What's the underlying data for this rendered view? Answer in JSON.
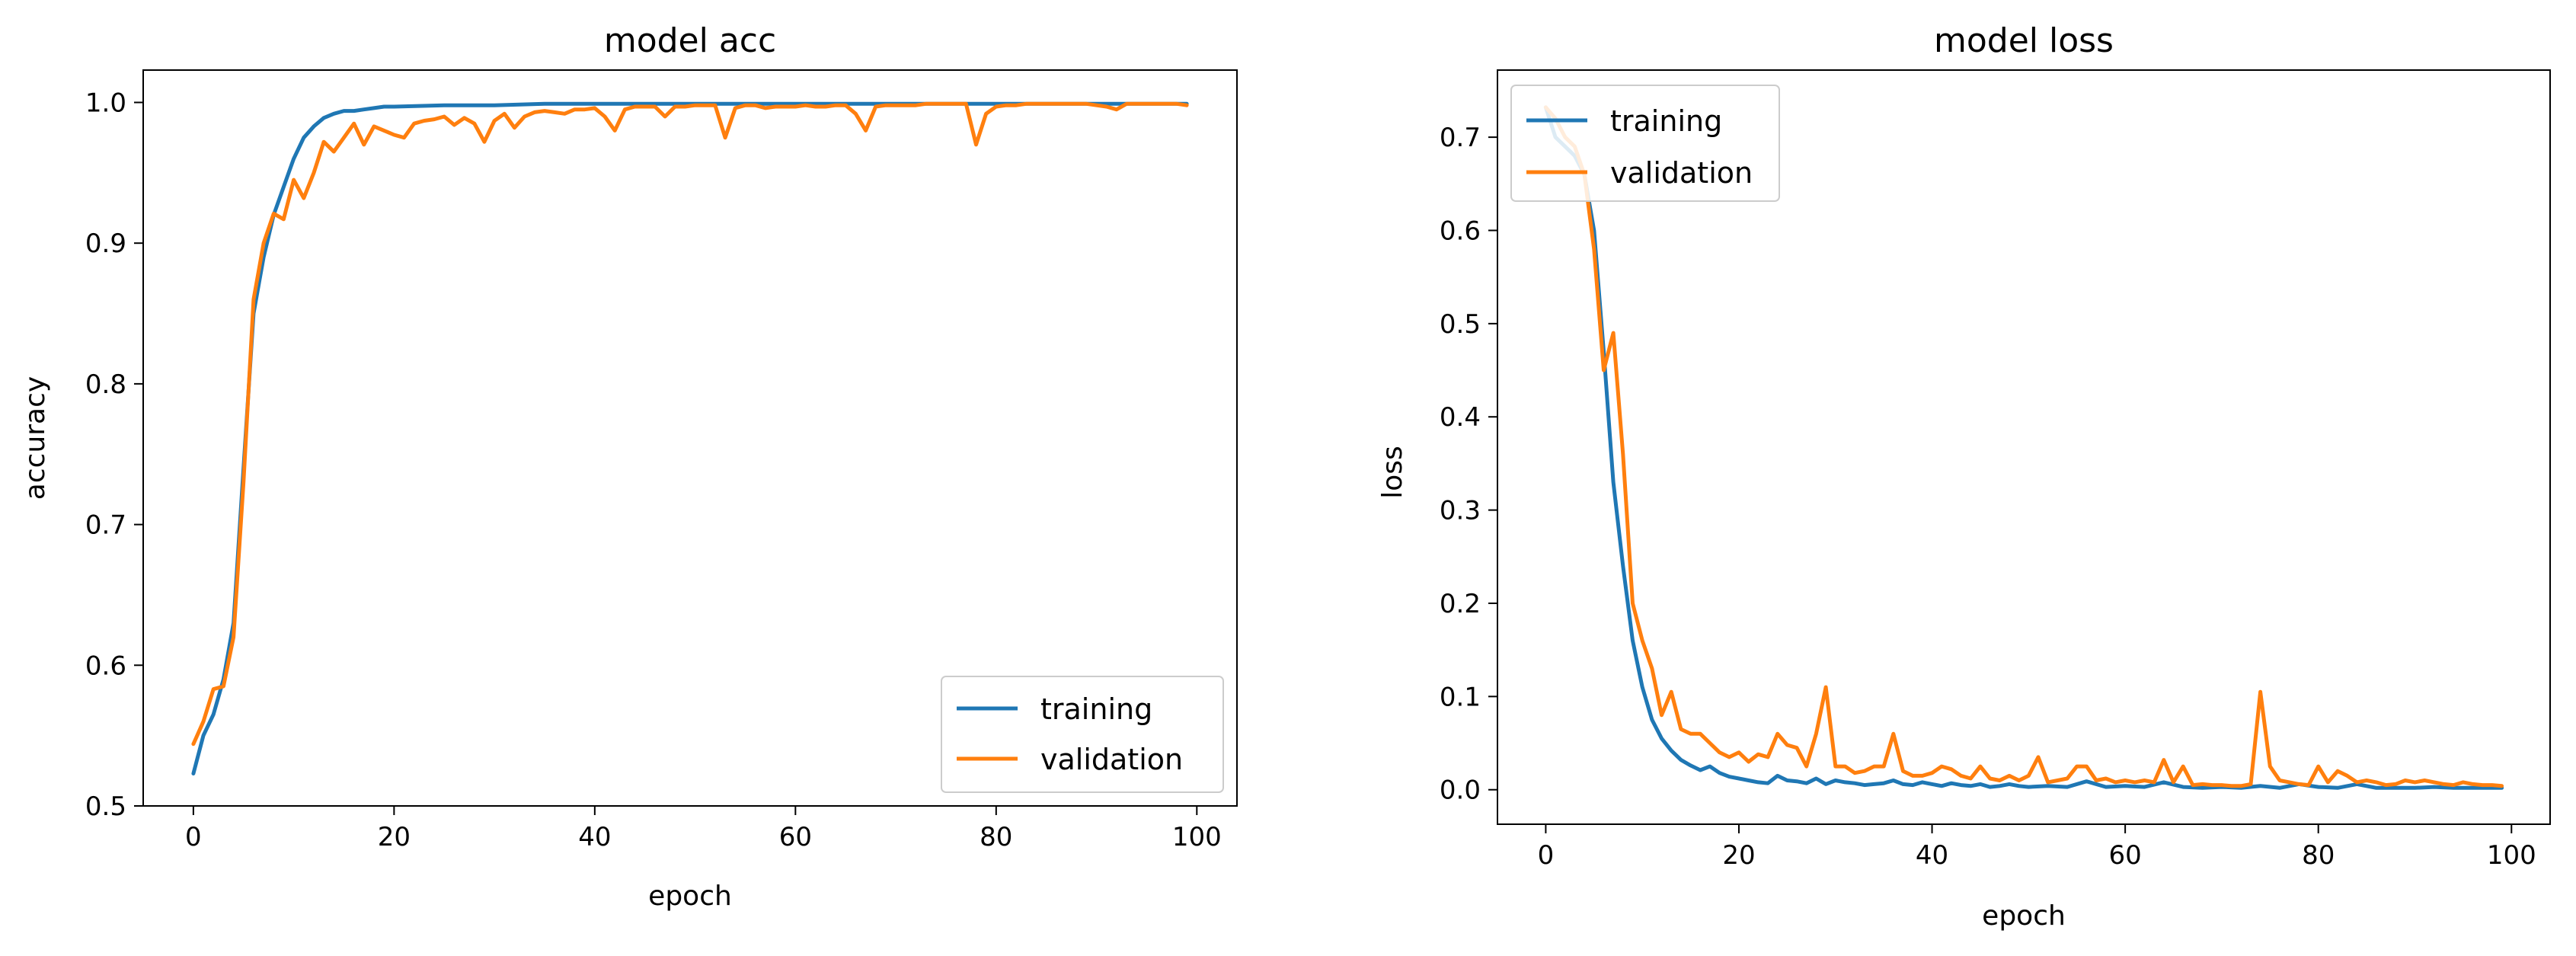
{
  "chart_data": [
    {
      "id": "acc",
      "type": "line",
      "title": "model acc",
      "xlabel": "epoch",
      "ylabel": "accuracy",
      "xlim": [
        -5,
        104
      ],
      "ylim": [
        0.5,
        1.023
      ],
      "xticks": [
        0,
        20,
        40,
        60,
        80,
        100
      ],
      "yticks": [
        0.5,
        0.6,
        0.7,
        0.8,
        0.9,
        1.0
      ],
      "ytick_labels": [
        "0.5",
        "0.6",
        "0.7",
        "0.8",
        "0.9",
        "1.0"
      ],
      "legend_loc": "lower-right",
      "grid": false,
      "series": [
        {
          "name": "training",
          "color": "#1f77b4",
          "x": [
            0,
            1,
            2,
            3,
            4,
            5,
            6,
            7,
            8,
            9,
            10,
            11,
            12,
            13,
            14,
            15,
            16,
            17,
            18,
            19,
            20,
            25,
            30,
            35,
            40,
            45,
            50,
            55,
            60,
            65,
            70,
            75,
            80,
            85,
            90,
            95,
            99
          ],
          "values": [
            0.523,
            0.55,
            0.565,
            0.59,
            0.63,
            0.74,
            0.85,
            0.89,
            0.92,
            0.94,
            0.96,
            0.975,
            0.983,
            0.989,
            0.992,
            0.994,
            0.994,
            0.995,
            0.996,
            0.997,
            0.997,
            0.998,
            0.998,
            0.999,
            0.999,
            0.999,
            0.999,
            0.999,
            0.999,
            0.999,
            0.999,
            0.999,
            0.999,
            0.999,
            0.999,
            0.999,
            0.999
          ]
        },
        {
          "name": "validation",
          "color": "#ff7f0e",
          "x": [
            0,
            1,
            2,
            3,
            4,
            5,
            6,
            7,
            8,
            9,
            10,
            11,
            12,
            13,
            14,
            15,
            16,
            17,
            18,
            19,
            20,
            21,
            22,
            23,
            24,
            25,
            26,
            27,
            28,
            29,
            30,
            31,
            32,
            33,
            34,
            35,
            36,
            37,
            38,
            39,
            40,
            41,
            42,
            43,
            44,
            45,
            46,
            47,
            48,
            49,
            50,
            51,
            52,
            53,
            54,
            55,
            56,
            57,
            58,
            59,
            60,
            61,
            62,
            63,
            64,
            65,
            66,
            67,
            68,
            69,
            70,
            71,
            72,
            73,
            74,
            75,
            76,
            77,
            78,
            79,
            80,
            81,
            82,
            83,
            84,
            85,
            86,
            87,
            88,
            89,
            90,
            91,
            92,
            93,
            94,
            95,
            96,
            97,
            98,
            99
          ],
          "values": [
            0.544,
            0.56,
            0.583,
            0.585,
            0.62,
            0.73,
            0.86,
            0.9,
            0.921,
            0.917,
            0.945,
            0.932,
            0.95,
            0.972,
            0.965,
            0.975,
            0.985,
            0.97,
            0.983,
            0.98,
            0.977,
            0.975,
            0.985,
            0.987,
            0.988,
            0.99,
            0.984,
            0.989,
            0.985,
            0.972,
            0.987,
            0.992,
            0.982,
            0.99,
            0.993,
            0.994,
            0.993,
            0.992,
            0.995,
            0.995,
            0.996,
            0.99,
            0.98,
            0.995,
            0.997,
            0.997,
            0.997,
            0.99,
            0.997,
            0.997,
            0.998,
            0.998,
            0.998,
            0.975,
            0.996,
            0.998,
            0.998,
            0.996,
            0.997,
            0.997,
            0.997,
            0.998,
            0.997,
            0.997,
            0.998,
            0.998,
            0.992,
            0.98,
            0.997,
            0.998,
            0.998,
            0.998,
            0.998,
            0.999,
            0.999,
            0.999,
            0.999,
            0.999,
            0.97,
            0.992,
            0.997,
            0.998,
            0.998,
            0.999,
            0.999,
            0.999,
            0.999,
            0.999,
            0.999,
            0.999,
            0.998,
            0.997,
            0.995,
            0.999,
            0.999,
            0.999,
            0.999,
            0.999,
            0.999,
            0.998
          ]
        }
      ]
    },
    {
      "id": "loss",
      "type": "line",
      "title": "model loss",
      "xlabel": "epoch",
      "ylabel": "loss",
      "xlim": [
        -5,
        104
      ],
      "ylim": [
        -0.037,
        0.772
      ],
      "xticks": [
        0,
        20,
        40,
        60,
        80,
        100
      ],
      "yticks": [
        0.0,
        0.1,
        0.2,
        0.3,
        0.4,
        0.5,
        0.6,
        0.7
      ],
      "ytick_labels": [
        "0.0",
        "0.1",
        "0.2",
        "0.3",
        "0.4",
        "0.5",
        "0.6",
        "0.7"
      ],
      "legend_loc": "upper-left",
      "grid": false,
      "series": [
        {
          "name": "training",
          "color": "#1f77b4",
          "x": [
            0,
            1,
            2,
            3,
            4,
            5,
            6,
            7,
            8,
            9,
            10,
            11,
            12,
            13,
            14,
            15,
            16,
            17,
            18,
            19,
            20,
            21,
            22,
            23,
            24,
            25,
            26,
            27,
            28,
            29,
            30,
            31,
            32,
            33,
            34,
            35,
            36,
            37,
            38,
            39,
            40,
            41,
            42,
            43,
            44,
            45,
            46,
            47,
            48,
            49,
            50,
            52,
            54,
            56,
            58,
            60,
            62,
            64,
            66,
            68,
            70,
            72,
            74,
            76,
            78,
            80,
            82,
            84,
            86,
            88,
            90,
            92,
            94,
            96,
            99
          ],
          "values": [
            0.732,
            0.7,
            0.69,
            0.68,
            0.66,
            0.6,
            0.47,
            0.33,
            0.24,
            0.16,
            0.11,
            0.075,
            0.055,
            0.042,
            0.032,
            0.026,
            0.021,
            0.025,
            0.018,
            0.014,
            0.012,
            0.01,
            0.008,
            0.007,
            0.015,
            0.01,
            0.009,
            0.007,
            0.012,
            0.006,
            0.01,
            0.008,
            0.007,
            0.005,
            0.006,
            0.007,
            0.01,
            0.006,
            0.005,
            0.008,
            0.006,
            0.004,
            0.007,
            0.005,
            0.004,
            0.006,
            0.003,
            0.004,
            0.006,
            0.004,
            0.003,
            0.004,
            0.003,
            0.009,
            0.003,
            0.004,
            0.003,
            0.008,
            0.003,
            0.002,
            0.003,
            0.002,
            0.004,
            0.002,
            0.006,
            0.003,
            0.002,
            0.006,
            0.002,
            0.002,
            0.002,
            0.003,
            0.002,
            0.002,
            0.002
          ]
        },
        {
          "name": "validation",
          "color": "#ff7f0e",
          "x": [
            0,
            1,
            2,
            3,
            4,
            5,
            6,
            7,
            8,
            9,
            10,
            11,
            12,
            13,
            14,
            15,
            16,
            17,
            18,
            19,
            20,
            21,
            22,
            23,
            24,
            25,
            26,
            27,
            28,
            29,
            30,
            31,
            32,
            33,
            34,
            35,
            36,
            37,
            38,
            39,
            40,
            41,
            42,
            43,
            44,
            45,
            46,
            47,
            48,
            49,
            50,
            51,
            52,
            53,
            54,
            55,
            56,
            57,
            58,
            59,
            60,
            61,
            62,
            63,
            64,
            65,
            66,
            67,
            68,
            69,
            70,
            71,
            72,
            73,
            74,
            75,
            76,
            77,
            78,
            79,
            80,
            81,
            82,
            83,
            84,
            85,
            86,
            87,
            88,
            89,
            90,
            91,
            92,
            93,
            94,
            95,
            96,
            97,
            98,
            99
          ],
          "values": [
            0.732,
            0.72,
            0.7,
            0.69,
            0.66,
            0.58,
            0.45,
            0.49,
            0.36,
            0.2,
            0.16,
            0.13,
            0.08,
            0.105,
            0.065,
            0.06,
            0.06,
            0.05,
            0.04,
            0.035,
            0.04,
            0.03,
            0.038,
            0.035,
            0.06,
            0.048,
            0.045,
            0.025,
            0.06,
            0.11,
            0.025,
            0.025,
            0.018,
            0.02,
            0.025,
            0.025,
            0.06,
            0.02,
            0.015,
            0.015,
            0.018,
            0.025,
            0.022,
            0.015,
            0.012,
            0.025,
            0.012,
            0.01,
            0.015,
            0.01,
            0.015,
            0.035,
            0.008,
            0.01,
            0.012,
            0.025,
            0.025,
            0.01,
            0.012,
            0.008,
            0.01,
            0.008,
            0.01,
            0.008,
            0.032,
            0.008,
            0.025,
            0.005,
            0.006,
            0.005,
            0.005,
            0.004,
            0.004,
            0.006,
            0.105,
            0.025,
            0.01,
            0.008,
            0.006,
            0.005,
            0.025,
            0.008,
            0.02,
            0.015,
            0.008,
            0.01,
            0.008,
            0.005,
            0.006,
            0.01,
            0.008,
            0.01,
            0.008,
            0.006,
            0.005,
            0.008,
            0.006,
            0.005,
            0.005,
            0.004
          ]
        }
      ]
    }
  ]
}
